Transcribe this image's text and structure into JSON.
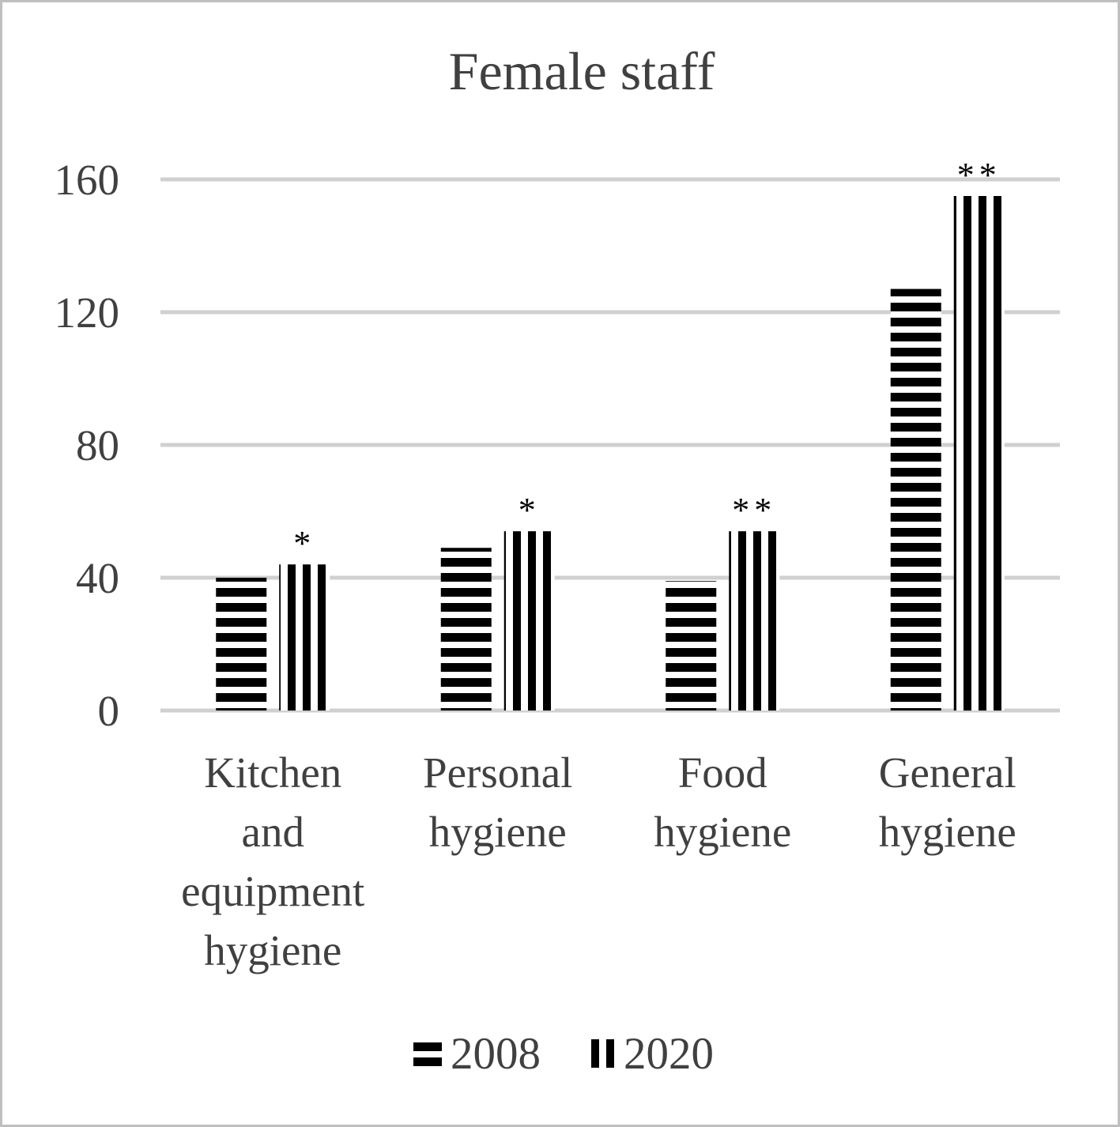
{
  "chart_data": {
    "type": "bar",
    "title": "Female staff",
    "xlabel": "",
    "ylabel": "",
    "ylim": [
      0,
      160
    ],
    "yticks": [
      0,
      40,
      80,
      120,
      160
    ],
    "grid": true,
    "legend_position": "bottom",
    "categories": [
      [
        "Kitchen",
        "and",
        "equipment",
        "hygiene"
      ],
      [
        "Personal",
        "hygiene"
      ],
      [
        "Food",
        "hygiene"
      ],
      [
        "General",
        "hygiene"
      ]
    ],
    "series": [
      {
        "name": "2008",
        "pattern": "horizontal-stripes",
        "values": [
          40,
          49,
          39,
          127
        ]
      },
      {
        "name": "2020",
        "pattern": "vertical-stripes",
        "values": [
          44,
          54,
          54,
          155
        ]
      }
    ],
    "annotations": [
      "*",
      "*",
      "**",
      "**"
    ],
    "colors": {
      "bar_stripe": "#000000",
      "grid": "#d0d0d0",
      "text": "#404040",
      "frame": "#bfbfbf"
    }
  }
}
